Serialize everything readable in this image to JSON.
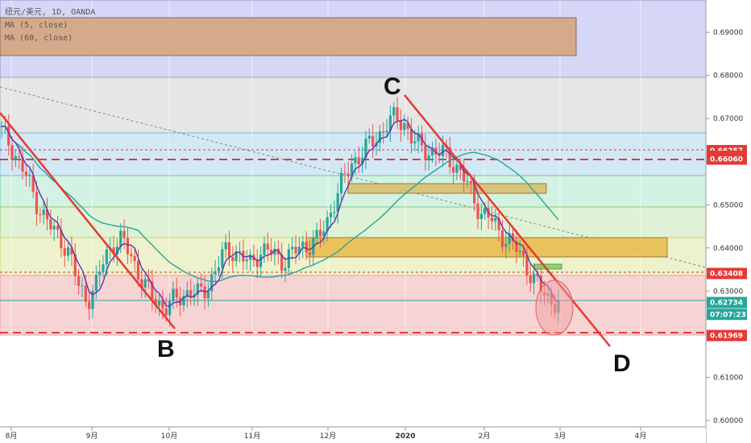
{
  "header": {
    "symbol_line": "纽元/美元, 1D, OANDA",
    "ma5": "MA (5, close)",
    "ma60": "MA (60, close)"
  },
  "chart_data": {
    "type": "candlestick",
    "title": "纽元/美元, 1D, OANDA",
    "y_ticks": [
      "0.60000",
      "0.61000",
      "0.62000",
      "0.63000",
      "0.64000",
      "0.65000",
      "0.66000",
      "0.67000",
      "0.68000",
      "0.69000"
    ],
    "x_ticks": [
      "8月",
      "9月",
      "10月",
      "11月",
      "12月",
      "2020",
      "2月",
      "3月",
      "4月"
    ],
    "ylim": [
      0.5985,
      0.6975
    ],
    "price_labels": [
      {
        "text": "0.66257",
        "value": 0.66257,
        "color": "#e53935"
      },
      {
        "text": "0.66127",
        "value": 0.66127,
        "color": "#e53935"
      },
      {
        "text": "0.66060",
        "value": 0.6606,
        "color": "#e53935"
      },
      {
        "text": "0.63408",
        "value": 0.63408,
        "color": "#e53935"
      },
      {
        "text": "0.62734",
        "value": 0.62734,
        "color": "#26a69a"
      },
      {
        "text": "07:07:23",
        "value": 0.6246,
        "color": "#26a69a"
      },
      {
        "text": "0.61969",
        "value": 0.61969,
        "color": "#e53935"
      }
    ],
    "wave_labels": [
      "B",
      "C",
      "D"
    ],
    "colors": {
      "up": "#26a69a",
      "down": "#ef5350",
      "ma5": "#5e35b1",
      "ma60": "#26a69a",
      "trend": "#e53935"
    },
    "price_path": [
      0.667,
      0.664,
      0.66,
      0.656,
      0.651,
      0.647,
      0.644,
      0.642,
      0.638,
      0.631,
      0.628,
      0.631,
      0.638,
      0.641,
      0.6415,
      0.639,
      0.634,
      0.63,
      0.628,
      0.626,
      0.6275,
      0.629,
      0.63,
      0.629,
      0.631,
      0.635,
      0.639,
      0.6395,
      0.638,
      0.636,
      0.639,
      0.6395,
      0.638,
      0.637,
      0.639,
      0.64,
      0.641,
      0.642,
      0.646,
      0.652,
      0.656,
      0.66,
      0.662,
      0.664,
      0.666,
      0.669,
      0.67,
      0.669,
      0.665,
      0.663,
      0.6625,
      0.662,
      0.6615,
      0.659,
      0.656,
      0.652,
      0.648,
      0.647,
      0.644,
      0.642,
      0.64,
      0.637,
      0.633,
      0.63,
      0.628,
      0.6273
    ]
  }
}
